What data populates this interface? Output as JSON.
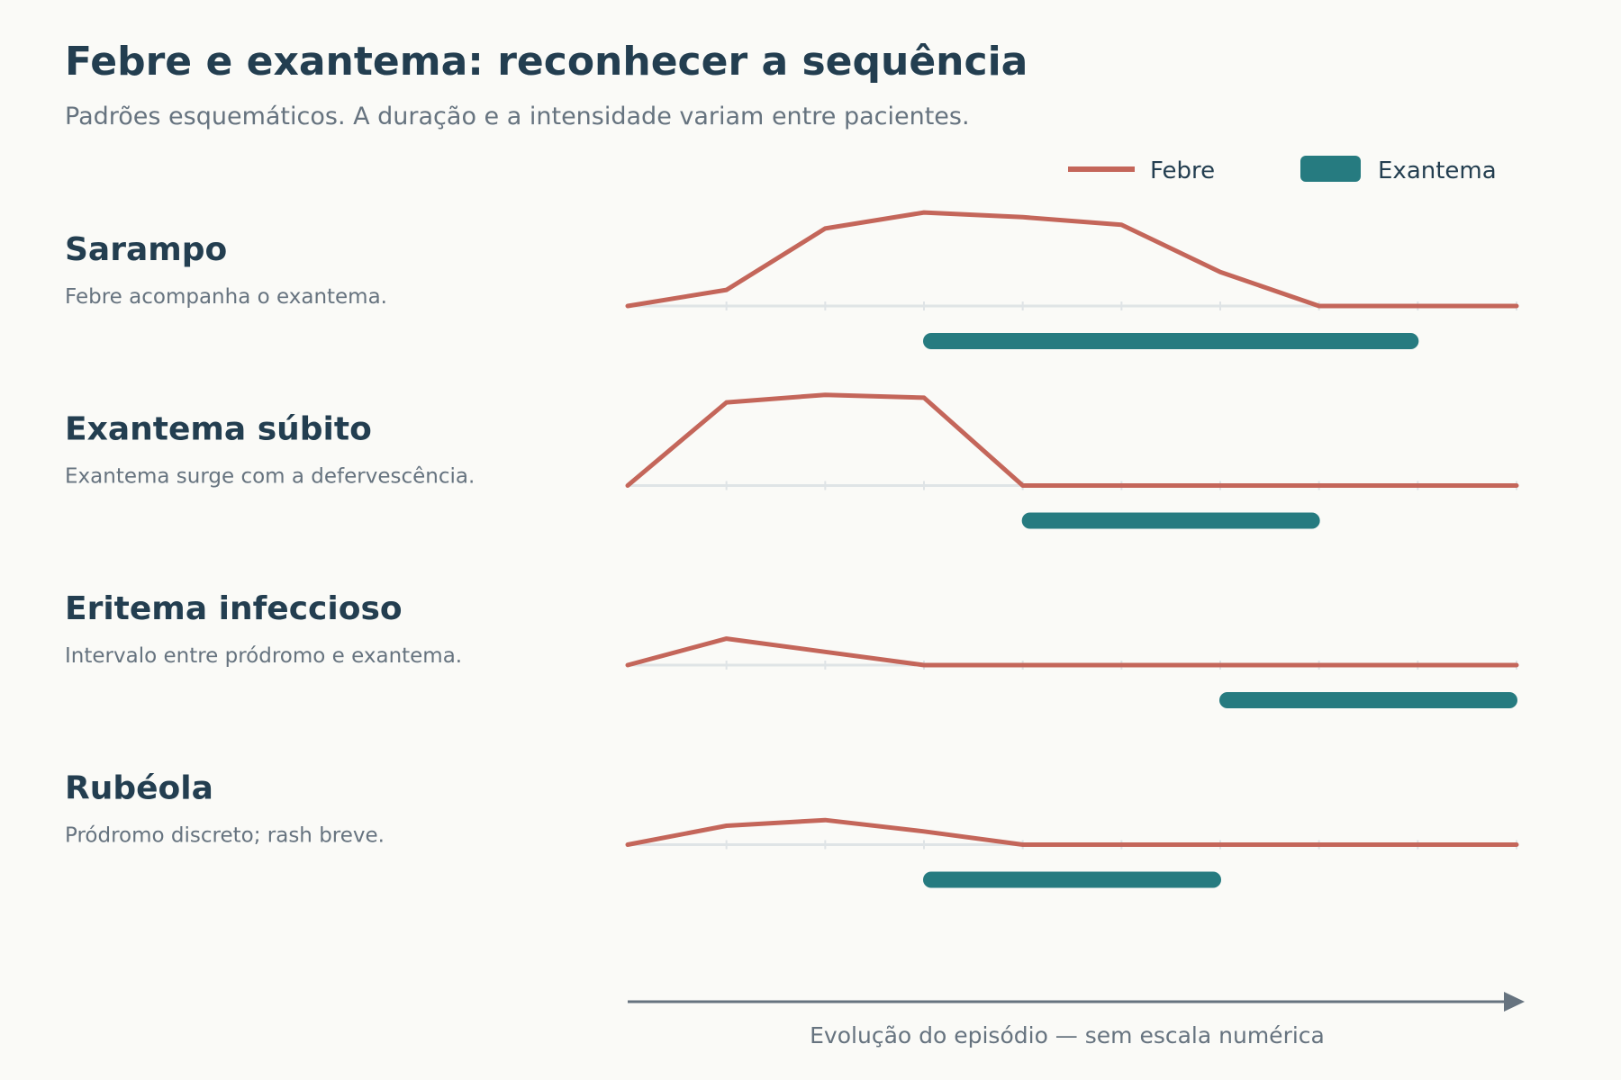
{
  "title": "Febre e exantema: reconhecer a sequência",
  "subtitle": "Padrões esquemáticos. A duração e a intensidade variam entre pacientes.",
  "legend": {
    "fever_label": "Febre",
    "rash_label": "Exantema"
  },
  "axis": {
    "label": "Evolução do episódio — sem escala numérica"
  },
  "colors": {
    "fever": "#c4665a",
    "rash": "#267b80",
    "baseline": "#dfe4e6",
    "axis": "#66737f"
  },
  "chart_data": {
    "type": "line",
    "x_steps": 10,
    "y_range": [
      0,
      1
    ],
    "rows": [
      {
        "name": "Sarampo",
        "note": "Febre acompanha o exantema.",
        "fever": [
          0,
          0.17,
          0.82,
          0.99,
          0.94,
          0.86,
          0.36,
          0,
          0,
          0
        ],
        "rash": [
          3,
          8
        ]
      },
      {
        "name": "Exantema súbito",
        "note": "Exantema surge com a defervescência.",
        "fever": [
          0,
          0.88,
          0.96,
          0.93,
          0,
          0,
          0,
          0,
          0,
          0
        ],
        "rash": [
          4,
          7
        ]
      },
      {
        "name": "Eritema infeccioso",
        "note": "Intervalo entre pródromo e exantema.",
        "fever": [
          0,
          0.28,
          0.14,
          0,
          0,
          0,
          0,
          0,
          0,
          0
        ],
        "rash": [
          6,
          9
        ]
      },
      {
        "name": "Rubéola",
        "note": "Pródromo discreto; rash breve.",
        "fever": [
          0,
          0.2,
          0.26,
          0.14,
          0,
          0,
          0,
          0,
          0,
          0
        ],
        "rash": [
          3,
          6
        ]
      }
    ]
  }
}
